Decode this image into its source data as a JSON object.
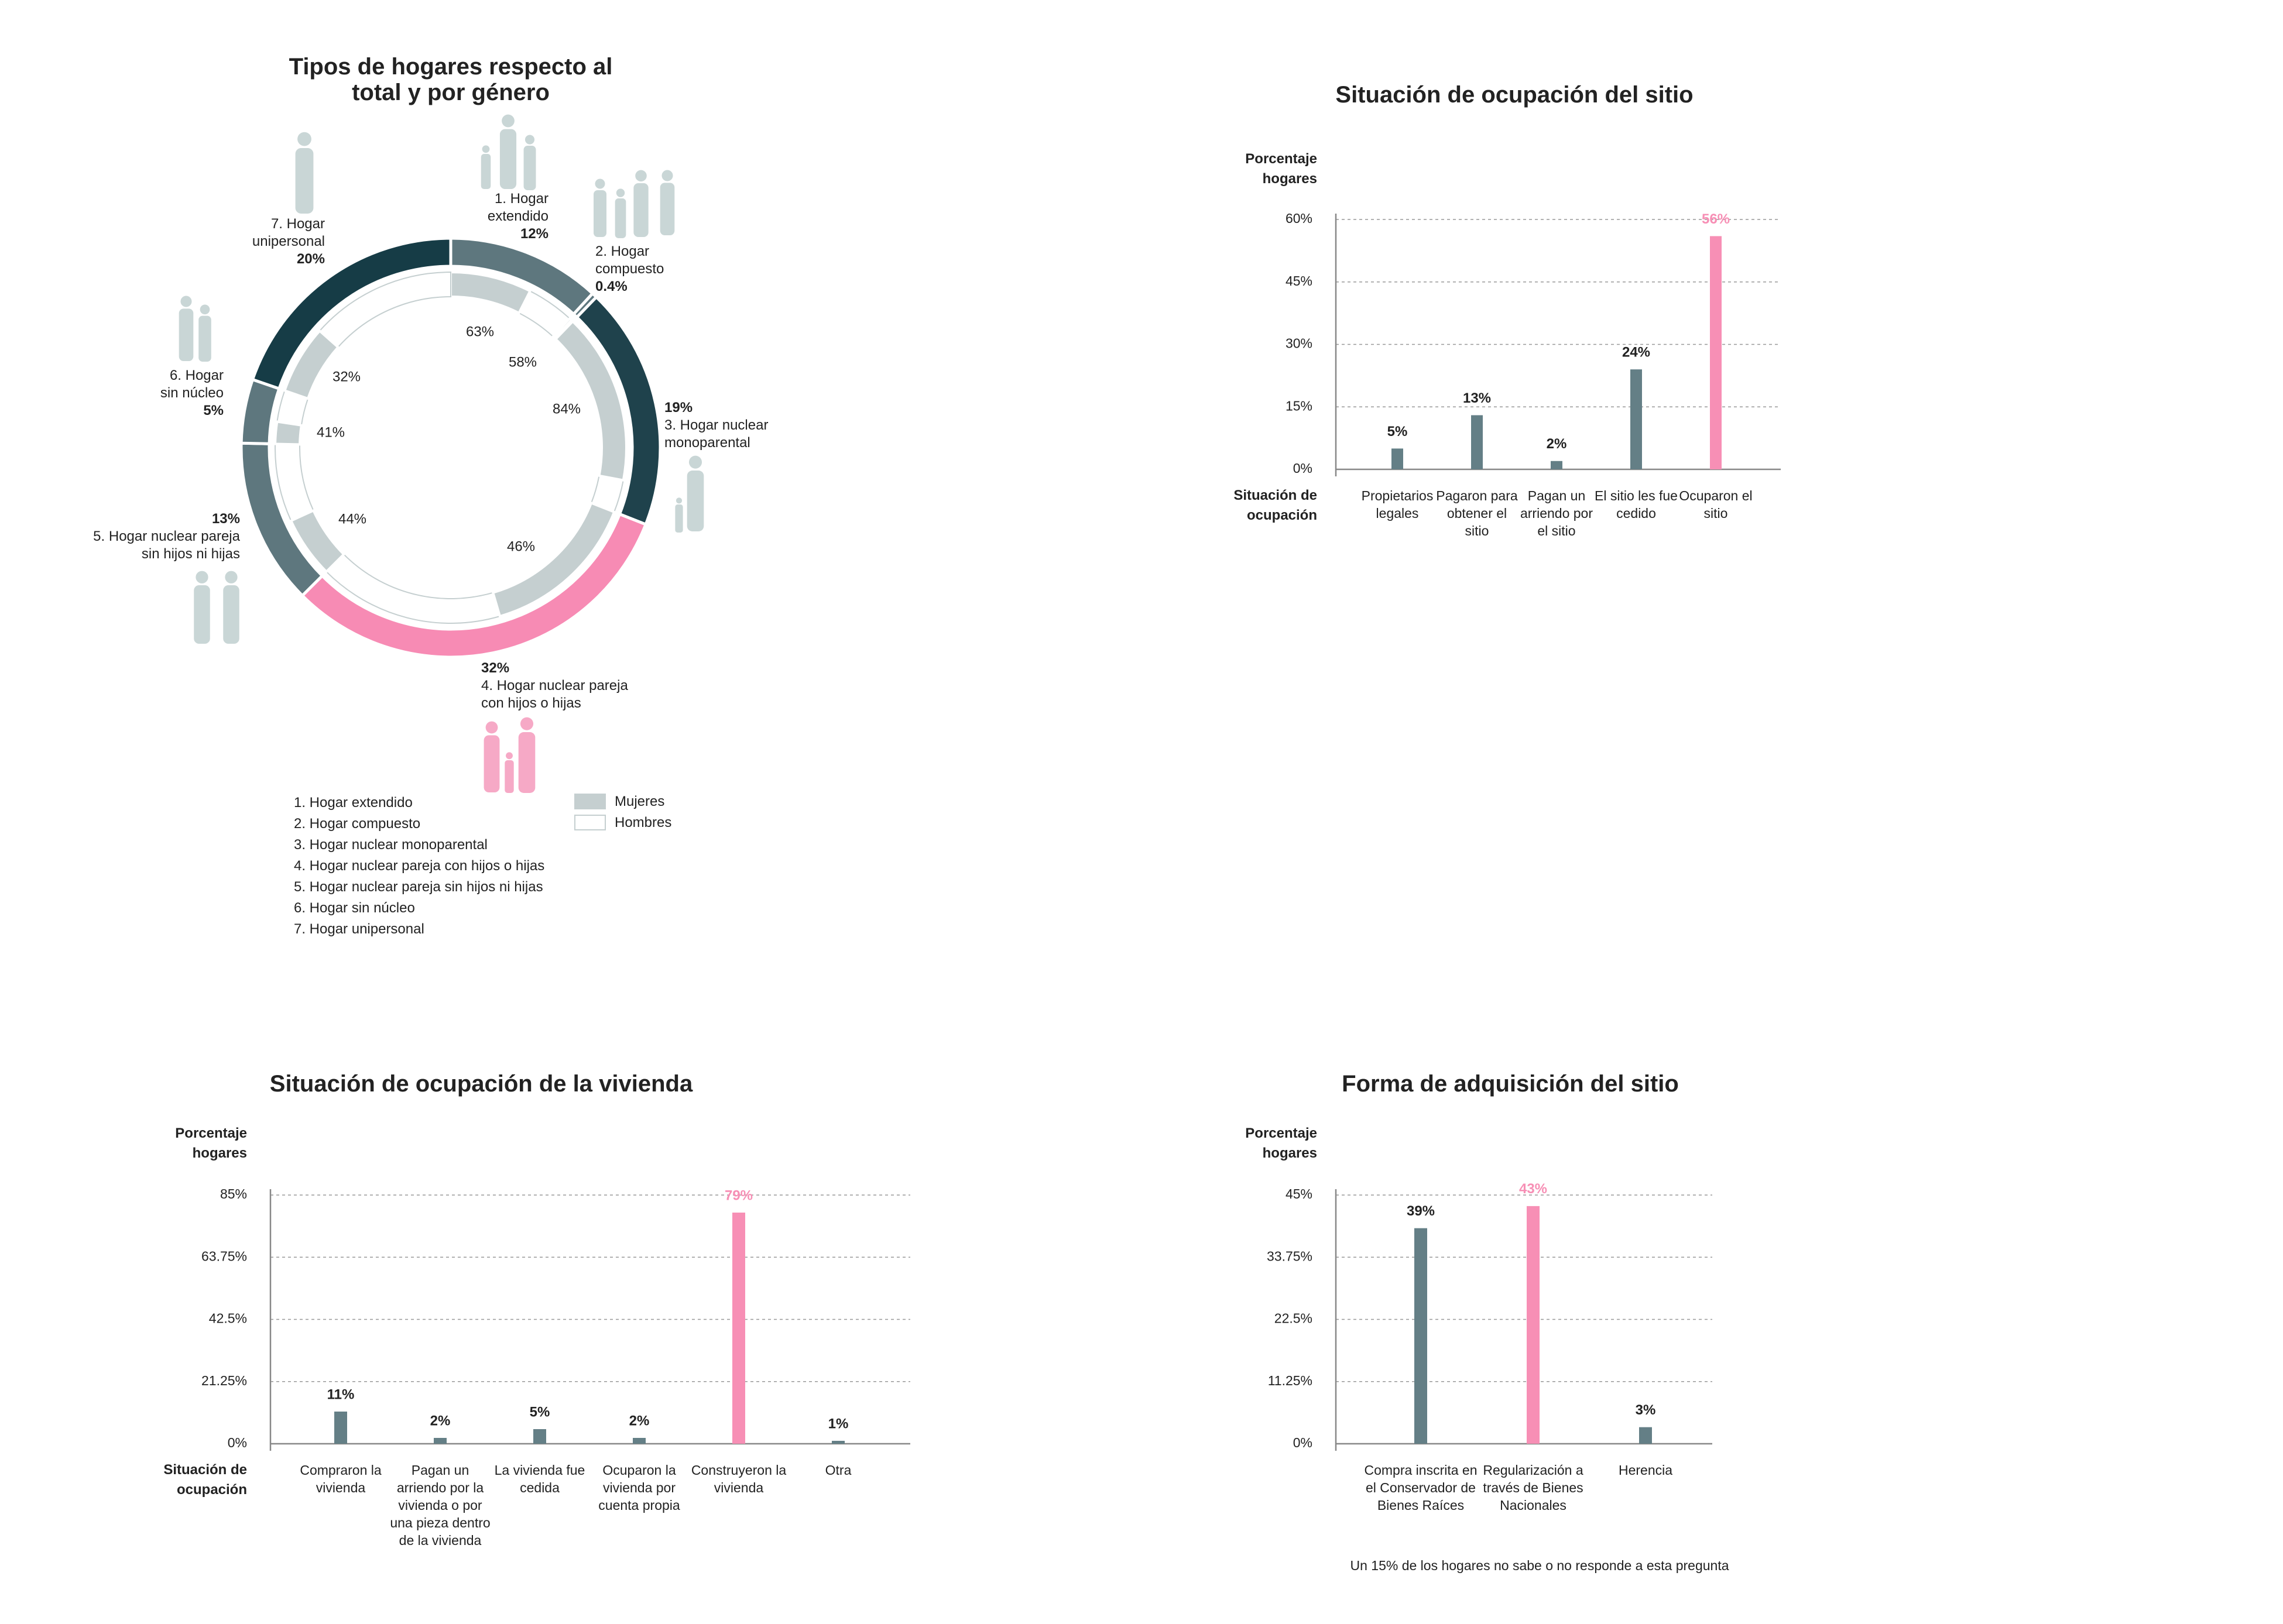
{
  "chart_data": [
    {
      "type": "donut",
      "title": "Tipos de hogares respecto al total y por género",
      "categories": [
        "1. Hogar extendido",
        "2. Hogar compuesto",
        "3. Hogar nuclear monoparental",
        "4. Hogar nuclear pareja con hijos o hijas",
        "5. Hogar nuclear pareja sin hijos ni hijas",
        "6. Hogar sin núcleo",
        "7. Hogar unipersonal"
      ],
      "values": [
        12,
        0.4,
        19,
        32,
        13,
        5,
        20
      ],
      "value_labels": [
        "12%",
        "0.4%",
        "19%",
        "32%",
        "13%",
        "5%",
        "20%"
      ],
      "colors": [
        "#5e777e",
        "#5e777e",
        "#1f424c",
        "#f78bb4",
        "#5e777e",
        "#5e777e",
        "#163c46"
      ],
      "series": [
        {
          "name": "Mujeres",
          "color": "#c5cfd0",
          "values": [
            63,
            58,
            84,
            46,
            44,
            41,
            32
          ],
          "value_labels": [
            "63%",
            "58%",
            "84%",
            "46%",
            "44%",
            "41%",
            "32%"
          ]
        },
        {
          "name": "Hombres",
          "color": "#ffffff",
          "values": [
            37,
            42,
            16,
            54,
            56,
            59,
            68
          ]
        }
      ]
    },
    {
      "type": "bar",
      "title": "Situación de ocupación del sitio",
      "y_label": "Porcentaje hogares",
      "x_label": "Situación de ocupación",
      "categories": [
        "Propietarios legales",
        "Pagaron para obtener el sitio",
        "Pagan un arriendo por el sitio",
        "El sitio les fue cedido",
        "Ocuparon el sitio"
      ],
      "values": [
        5,
        13,
        2,
        24,
        56
      ],
      "value_labels": [
        "5%",
        "13%",
        "2%",
        "24%",
        "56%"
      ],
      "colors": [
        "#647f86",
        "#647f86",
        "#647f86",
        "#647f86",
        "#f78fb5"
      ],
      "value_label_colors": [
        "#222222",
        "#222222",
        "#222222",
        "#222222",
        "#f78fb5"
      ],
      "ylim": [
        0,
        60
      ],
      "yticks": [
        {
          "value": 0,
          "label": "0%"
        },
        {
          "value": 15,
          "label": "15%"
        },
        {
          "value": 30,
          "label": "30%"
        },
        {
          "value": 45,
          "label": "45%"
        },
        {
          "value": 60,
          "label": "60%"
        }
      ],
      "grid": true
    },
    {
      "type": "bar",
      "title": "Situación de ocupación de la vivienda",
      "y_label": "Porcentaje hogares",
      "x_label": "Situación de ocupación",
      "categories": [
        "Compraron la vivienda",
        "Pagan un arriendo por la vivienda o por una pieza dentro de la vivienda",
        "La vivienda fue cedida",
        "Ocuparon la vivienda por cuenta propia",
        "Construyeron la vivienda",
        "Otra"
      ],
      "values": [
        11,
        2,
        5,
        2,
        79,
        1
      ],
      "value_labels": [
        "11%",
        "2%",
        "5%",
        "2%",
        "79%",
        "1%"
      ],
      "colors": [
        "#647f86",
        "#647f86",
        "#647f86",
        "#647f86",
        "#f78fb5",
        "#647f86"
      ],
      "value_label_colors": [
        "#222222",
        "#222222",
        "#222222",
        "#222222",
        "#f78fb5",
        "#222222"
      ],
      "ylim": [
        0,
        85
      ],
      "yticks": [
        {
          "value": 0,
          "label": "0%"
        },
        {
          "value": 21.25,
          "label": "21.25%"
        },
        {
          "value": 42.5,
          "label": "42.5%"
        },
        {
          "value": 63.75,
          "label": "63.75%"
        },
        {
          "value": 85,
          "label": "85%"
        }
      ],
      "grid": true
    },
    {
      "type": "bar",
      "title": "Forma de adquisición del sitio",
      "y_label": "Porcentaje hogares",
      "categories": [
        "Compra inscrita en el Conservador de Bienes Raíces",
        "Regularización a través de Bienes Nacionales",
        "Herencia"
      ],
      "values": [
        39,
        43,
        3
      ],
      "value_labels": [
        "39%",
        "43%",
        "3%"
      ],
      "colors": [
        "#647f86",
        "#f78fb5",
        "#647f86"
      ],
      "value_label_colors": [
        "#222222",
        "#f78fb5",
        "#222222"
      ],
      "ylim": [
        0,
        45
      ],
      "yticks": [
        {
          "value": 0,
          "label": "0%"
        },
        {
          "value": 11.25,
          "label": "11.25%"
        },
        {
          "value": 22.5,
          "label": "22.5%"
        },
        {
          "value": 33.75,
          "label": "33.75%"
        },
        {
          "value": 45,
          "label": "45%"
        }
      ],
      "grid": true,
      "note": "Un 15% de los hogares no sabe o no responde a esta pregunta"
    }
  ]
}
